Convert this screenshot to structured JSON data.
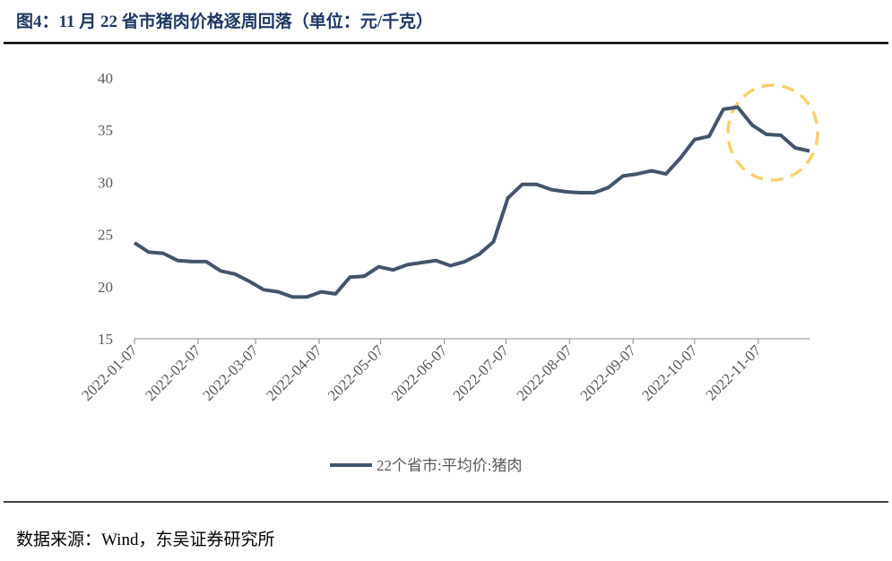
{
  "chart_data": {
    "type": "line",
    "title": "图4：11 月 22 省市猪肉价格逐周回落（单位：元/千克）",
    "source": "数据来源：Wind，东吴证券研究所",
    "x": [
      "2022-01-07",
      "2022-01-14",
      "2022-01-21",
      "2022-01-28",
      "2022-02-04",
      "2022-02-11",
      "2022-02-18",
      "2022-02-25",
      "2022-03-04",
      "2022-03-11",
      "2022-03-18",
      "2022-03-25",
      "2022-04-01",
      "2022-04-08",
      "2022-04-15",
      "2022-04-22",
      "2022-04-29",
      "2022-05-06",
      "2022-05-13",
      "2022-05-20",
      "2022-05-27",
      "2022-06-03",
      "2022-06-10",
      "2022-06-17",
      "2022-06-24",
      "2022-07-01",
      "2022-07-08",
      "2022-07-15",
      "2022-07-22",
      "2022-07-29",
      "2022-08-05",
      "2022-08-12",
      "2022-08-19",
      "2022-08-26",
      "2022-09-02",
      "2022-09-09",
      "2022-09-16",
      "2022-09-23",
      "2022-09-30",
      "2022-10-07",
      "2022-10-14",
      "2022-10-21",
      "2022-10-28",
      "2022-11-04",
      "2022-11-11",
      "2022-11-18",
      "2022-11-25",
      "2022-12-02"
    ],
    "series": [
      {
        "name": "22个省市:平均价:猪肉",
        "color": "#44546a",
        "values": [
          24.2,
          23.3,
          23.2,
          22.5,
          22.4,
          22.4,
          21.5,
          21.2,
          20.5,
          19.7,
          19.5,
          19.0,
          19.0,
          19.5,
          19.3,
          20.9,
          21.0,
          21.9,
          21.6,
          22.1,
          22.3,
          22.5,
          22.0,
          22.4,
          23.1,
          24.3,
          28.5,
          29.8,
          29.8,
          29.3,
          29.1,
          29.0,
          29.0,
          29.5,
          30.6,
          30.8,
          31.1,
          30.8,
          32.3,
          34.1,
          34.4,
          37.0,
          37.2,
          35.5,
          34.6,
          34.5,
          33.3,
          33.0
        ]
      }
    ],
    "xlim": [
      "2022-01-07",
      "2022-12-02"
    ],
    "xticks": [
      "2022-01-07",
      "2022-02-07",
      "2022-03-07",
      "2022-04-07",
      "2022-05-07",
      "2022-06-07",
      "2022-07-07",
      "2022-08-07",
      "2022-09-07",
      "2022-10-07",
      "2022-11-07"
    ],
    "ylim": [
      15,
      40
    ],
    "yticks": [
      15,
      20,
      25,
      30,
      35,
      40
    ],
    "grid": false
  }
}
